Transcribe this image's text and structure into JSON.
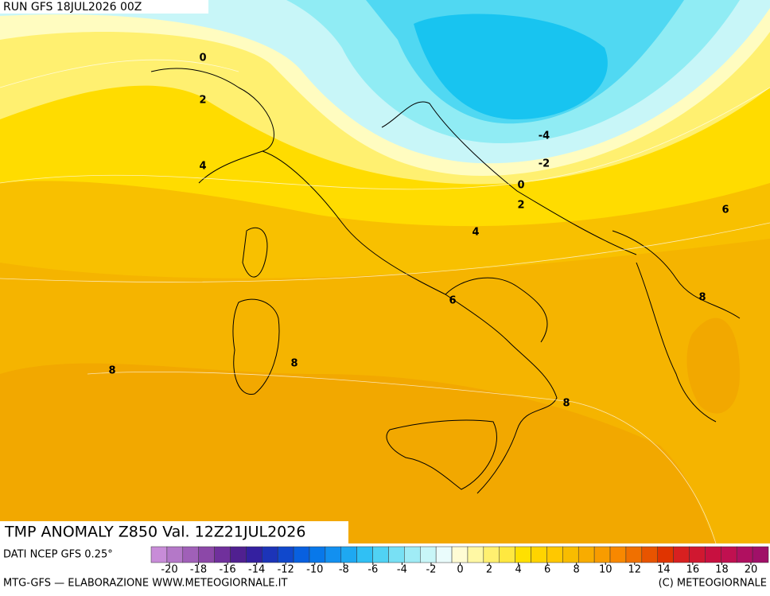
{
  "header": {
    "run": "RUN GFS 18JUL2026 00Z",
    "title": "TMP ANOMALY Z850 Val. 12Z21JUL2026",
    "source": "DATI NCEP GFS 0.25°"
  },
  "contour_labels": [
    0,
    2,
    4,
    -4,
    -2,
    0,
    2,
    4,
    6,
    6,
    8,
    8,
    8,
    8
  ],
  "colorbar": {
    "colors": [
      "#c88cd8",
      "#b478c8",
      "#a060b8",
      "#8c48a8",
      "#70309c",
      "#502090",
      "#3420a0",
      "#1c34b8",
      "#1048cc",
      "#0860e0",
      "#0878ea",
      "#1290f0",
      "#1ea8f2",
      "#30c0f4",
      "#50d2f4",
      "#78e0f4",
      "#a0ecf6",
      "#c8f6f8",
      "#eafcfc",
      "#fffcd4",
      "#fff8a4",
      "#fff070",
      "#ffe840",
      "#ffe000",
      "#ffd400",
      "#ffc800",
      "#f8bc00",
      "#f8ac00",
      "#f89c00",
      "#f88800",
      "#f07000",
      "#e85400",
      "#e03400",
      "#d82020",
      "#d01830",
      "#c81040",
      "#c01050",
      "#b01060",
      "#a01068"
    ],
    "ticks": [
      -20,
      -18,
      -16,
      -14,
      -12,
      -10,
      -8,
      -6,
      -4,
      -2,
      0,
      2,
      4,
      6,
      8,
      10,
      12,
      14,
      16,
      18,
      20
    ]
  },
  "footer": {
    "left": "MTG-GFS — ELABORAZIONE WWW.METEOGIORNALE.IT",
    "right": "(C) METEOGIORNALE"
  }
}
